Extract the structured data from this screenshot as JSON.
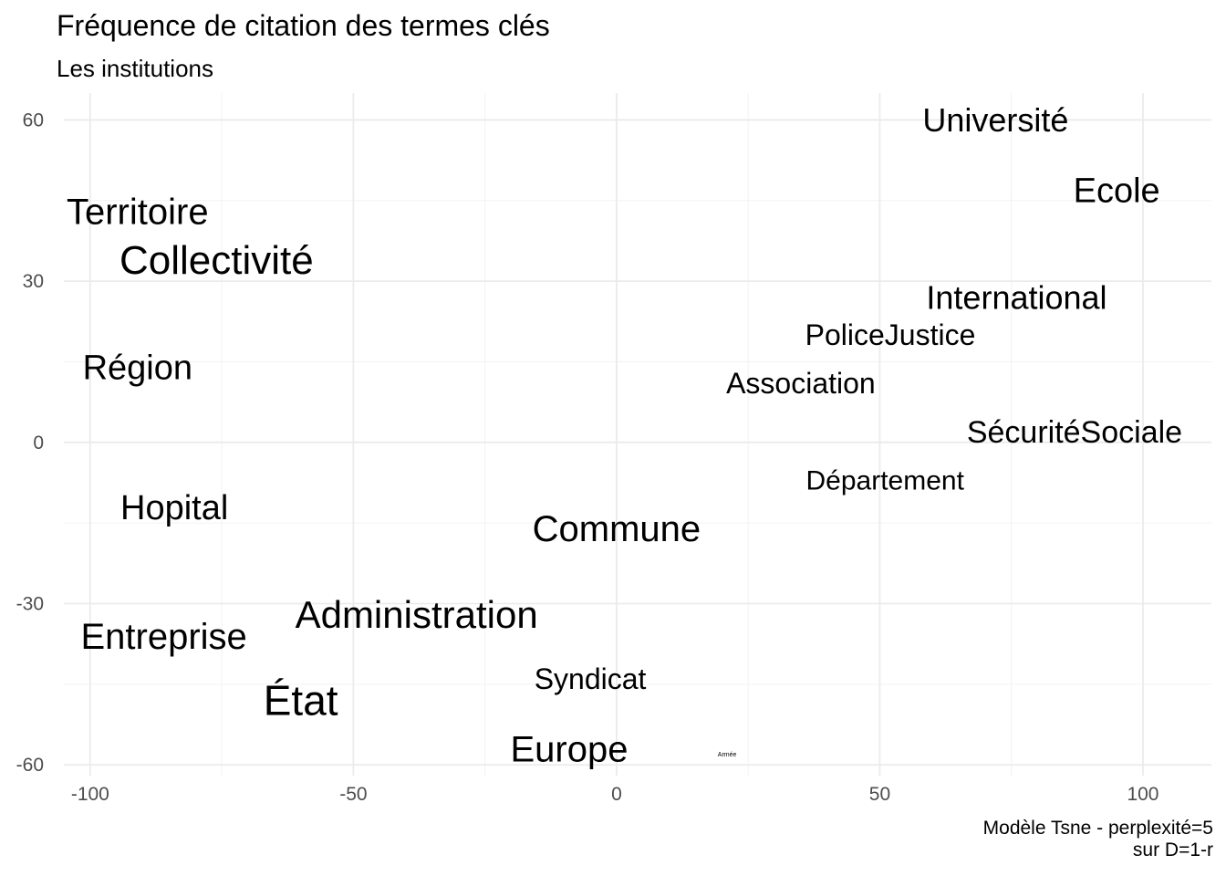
{
  "chart_data": {
    "type": "scatter",
    "title": "Fréquence de citation des termes clés",
    "subtitle": "Les institutions",
    "caption": [
      "Modèle Tsne - perplexité=5",
      "sur D=1-r"
    ],
    "xlabel": "",
    "ylabel": "",
    "xlim": [
      -105,
      113
    ],
    "ylim": [
      -62,
      65
    ],
    "x_ticks": [
      -100,
      -50,
      0,
      50,
      100
    ],
    "x_tick_labels": [
      "-100",
      "-50",
      "0",
      "50",
      "100"
    ],
    "y_ticks": [
      -60,
      -30,
      0,
      30,
      60
    ],
    "y_tick_labels": [
      "-60",
      "-30",
      "0",
      "30",
      "60"
    ],
    "grid": true,
    "words": [
      {
        "label": "Université",
        "x": 72,
        "y": 60,
        "frequency": 36
      },
      {
        "label": "Ecole",
        "x": 95,
        "y": 47,
        "frequency": 38
      },
      {
        "label": "Territoire",
        "x": -91,
        "y": 43,
        "frequency": 40
      },
      {
        "label": "Collectivité",
        "x": -76,
        "y": 34,
        "frequency": 44
      },
      {
        "label": "International",
        "x": 76,
        "y": 27,
        "frequency": 36
      },
      {
        "label": "PoliceJustice",
        "x": 52,
        "y": 20,
        "frequency": 32
      },
      {
        "label": "Région",
        "x": -91,
        "y": 14,
        "frequency": 38
      },
      {
        "label": "Association",
        "x": 35,
        "y": 11,
        "frequency": 32
      },
      {
        "label": "SécuritéSociale",
        "x": 87,
        "y": 2,
        "frequency": 34
      },
      {
        "label": "Département",
        "x": 51,
        "y": -7,
        "frequency": 30
      },
      {
        "label": "Hopital",
        "x": -84,
        "y": -12,
        "frequency": 38
      },
      {
        "label": "Commune",
        "x": 0,
        "y": -16,
        "frequency": 40
      },
      {
        "label": "Administration",
        "x": -38,
        "y": -32,
        "frequency": 42
      },
      {
        "label": "Entreprise",
        "x": -86,
        "y": -36,
        "frequency": 40
      },
      {
        "label": "Syndicat",
        "x": -5,
        "y": -44,
        "frequency": 32
      },
      {
        "label": "État",
        "x": -60,
        "y": -48,
        "frequency": 46
      },
      {
        "label": "Europe",
        "x": -9,
        "y": -57,
        "frequency": 40
      },
      {
        "label": "Armée",
        "x": 21,
        "y": -58,
        "frequency": 7
      }
    ]
  }
}
